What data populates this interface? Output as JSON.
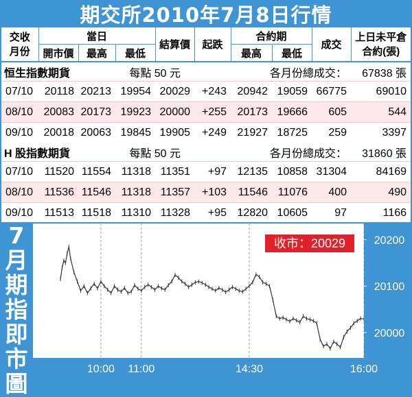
{
  "title": "期交所2010年7月8日行情",
  "table": {
    "headers": {
      "month": "交收月份",
      "day_group": "當日",
      "open": "開市價",
      "high": "最高",
      "low": "最低",
      "settle": "結算價",
      "change": "起跌",
      "contract_group": "合約期",
      "c_high": "最高",
      "c_low": "最低",
      "volume": "成交",
      "oi": "上日未平倉合約(張)"
    },
    "sections": [
      {
        "name": "恒生指數期貨",
        "per_point": "每點 50 元",
        "total_label": "各月份總成交：",
        "total_value": "67838 張",
        "rows": [
          [
            "07/10",
            "20118",
            "20213",
            "19954",
            "20029",
            "+243",
            "20942",
            "19059",
            "66775",
            "69010"
          ],
          [
            "08/10",
            "20083",
            "20173",
            "19923",
            "20000",
            "+255",
            "20173",
            "19666",
            "605",
            "544"
          ],
          [
            "09/10",
            "20018",
            "20063",
            "19845",
            "19905",
            "+249",
            "21927",
            "18725",
            "259",
            "3397"
          ]
        ]
      },
      {
        "name": "H 股指數期貨",
        "per_point": "每點 50 元",
        "total_label": "各月份總成交：",
        "total_value": "31860 張",
        "rows": [
          [
            "07/10",
            "11520",
            "11554",
            "11318",
            "11351",
            "+97",
            "12135",
            "10858",
            "31304",
            "84169"
          ],
          [
            "08/10",
            "11536",
            "11546",
            "11318",
            "11357",
            "+103",
            "11546",
            "11076",
            "400",
            "490"
          ],
          [
            "09/10",
            "11513",
            "11518",
            "11310",
            "11328",
            "+95",
            "12820",
            "10605",
            "97",
            "1166"
          ]
        ]
      }
    ]
  },
  "chart_title": "7月期指即市圖",
  "colors": {
    "background": "#3f95d3",
    "closing_red": "#e0202a",
    "line": "#333333"
  },
  "chart_data": {
    "type": "line",
    "title": "7月期指即市圖",
    "annotation": "收市：20029",
    "x_ticks": [
      "10:00",
      "11:00",
      "14:30",
      "16:00"
    ],
    "y_ticks": [
      20200,
      20100,
      20000
    ],
    "ylim": [
      19945,
      20235
    ],
    "series": [
      {
        "x": [
          0,
          5,
          10,
          15,
          20,
          25,
          30,
          40,
          50,
          60,
          70,
          80,
          90,
          100,
          110,
          120,
          130,
          140,
          150,
          160,
          170,
          180,
          190,
          200,
          210,
          220,
          230,
          240,
          250,
          260,
          270,
          280,
          290,
          300,
          310,
          320,
          330,
          340,
          350,
          360,
          370,
          380,
          390,
          400,
          410,
          420,
          430,
          440,
          450,
          460,
          470,
          480,
          490,
          500,
          510,
          520,
          530,
          540,
          550,
          560,
          570,
          580,
          590,
          600,
          610,
          620,
          630,
          640,
          650,
          660,
          670,
          680,
          690,
          700,
          710,
          720,
          730,
          740,
          750,
          760,
          770,
          780,
          790,
          800,
          810,
          820,
          830,
          840,
          850,
          860,
          870,
          880,
          890,
          900
        ],
        "y": [
          20115,
          20140,
          20155,
          20150,
          20170,
          20185,
          20160,
          20130,
          20110,
          20090,
          20100,
          20085,
          20095,
          20105,
          20095,
          20110,
          20100,
          20092,
          20085,
          20100,
          20092,
          20088,
          20096,
          20085,
          20088,
          20102,
          20094,
          20090,
          20098,
          20103,
          20098,
          20092,
          20100,
          20095,
          20092,
          20102,
          20110,
          20124,
          20118,
          20110,
          20105,
          20098,
          20103,
          20108,
          20110,
          20107,
          20103,
          20098,
          20094,
          20090,
          20096,
          20092,
          20087,
          20092,
          20098,
          20094,
          20090,
          20088,
          20094,
          20100,
          20108,
          20125,
          20120,
          20108,
          20105,
          20100,
          20070,
          20035,
          20030,
          20032,
          20028,
          20024,
          20030,
          20026,
          20022,
          20035,
          20030,
          20028,
          20025,
          20020,
          19985,
          19970,
          19975,
          19965,
          19980,
          19975,
          19968,
          19990,
          20002,
          20010,
          20020,
          20025,
          20030,
          20029
        ]
      }
    ]
  }
}
